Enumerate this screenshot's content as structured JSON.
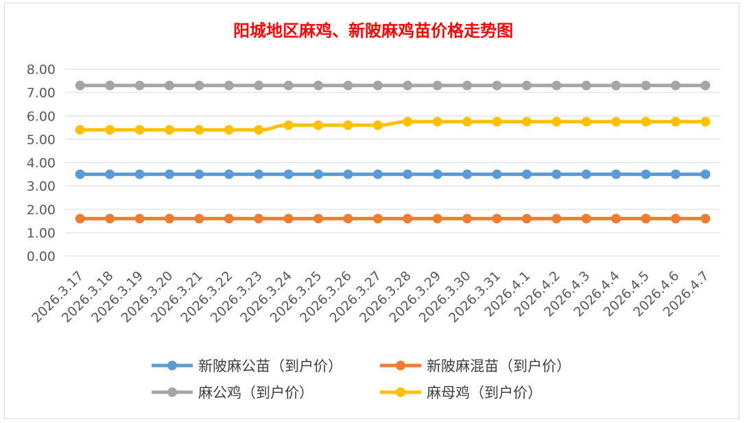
{
  "chart_data": {
    "type": "line",
    "title": "阳城地区麻鸡、新陂麻鸡苗价格走势图",
    "xlabel": "",
    "ylabel": "",
    "ylim": [
      0,
      8
    ],
    "yticks": [
      "0.00",
      "1.00",
      "2.00",
      "3.00",
      "4.00",
      "5.00",
      "6.00",
      "7.00",
      "8.00"
    ],
    "grid": true,
    "legend_position": "bottom",
    "categories": [
      "2026.3.17",
      "2026.3.18",
      "2026.3.19",
      "2026.3.20",
      "2026.3.21",
      "2026.3.22",
      "2026.3.23",
      "2026.3.24",
      "2026.3.25",
      "2026.3.26",
      "2026.3.27",
      "2026.3.28",
      "2026.3.29",
      "2026.3.30",
      "2026.3.31",
      "2026.4.1",
      "2026.4.2",
      "2026.4.3",
      "2026.4.4",
      "2026.4.5",
      "2026.4.6",
      "2026.4.7"
    ],
    "series": [
      {
        "name": "新陂麻公苗（到户价）",
        "color": "#5b9bd5",
        "values": [
          3.5,
          3.5,
          3.5,
          3.5,
          3.5,
          3.5,
          3.5,
          3.5,
          3.5,
          3.5,
          3.5,
          3.5,
          3.5,
          3.5,
          3.5,
          3.5,
          3.5,
          3.5,
          3.5,
          3.5,
          3.5,
          3.5
        ]
      },
      {
        "name": "新陂麻混苗（到户价）",
        "color": "#ed7d31",
        "values": [
          1.6,
          1.6,
          1.6,
          1.6,
          1.6,
          1.6,
          1.6,
          1.6,
          1.6,
          1.6,
          1.6,
          1.6,
          1.6,
          1.6,
          1.6,
          1.6,
          1.6,
          1.6,
          1.6,
          1.6,
          1.6,
          1.6
        ]
      },
      {
        "name": "麻公鸡（到户价）",
        "color": "#a5a5a5",
        "values": [
          7.3,
          7.3,
          7.3,
          7.3,
          7.3,
          7.3,
          7.3,
          7.3,
          7.3,
          7.3,
          7.3,
          7.3,
          7.3,
          7.3,
          7.3,
          7.3,
          7.3,
          7.3,
          7.3,
          7.3,
          7.3,
          7.3
        ]
      },
      {
        "name": "麻母鸡（到户价）",
        "color": "#ffc000",
        "values": [
          5.4,
          5.4,
          5.4,
          5.4,
          5.4,
          5.4,
          5.4,
          5.6,
          5.6,
          5.6,
          5.6,
          5.75,
          5.75,
          5.75,
          5.75,
          5.75,
          5.75,
          5.75,
          5.75,
          5.75,
          5.75,
          5.75
        ]
      }
    ]
  }
}
